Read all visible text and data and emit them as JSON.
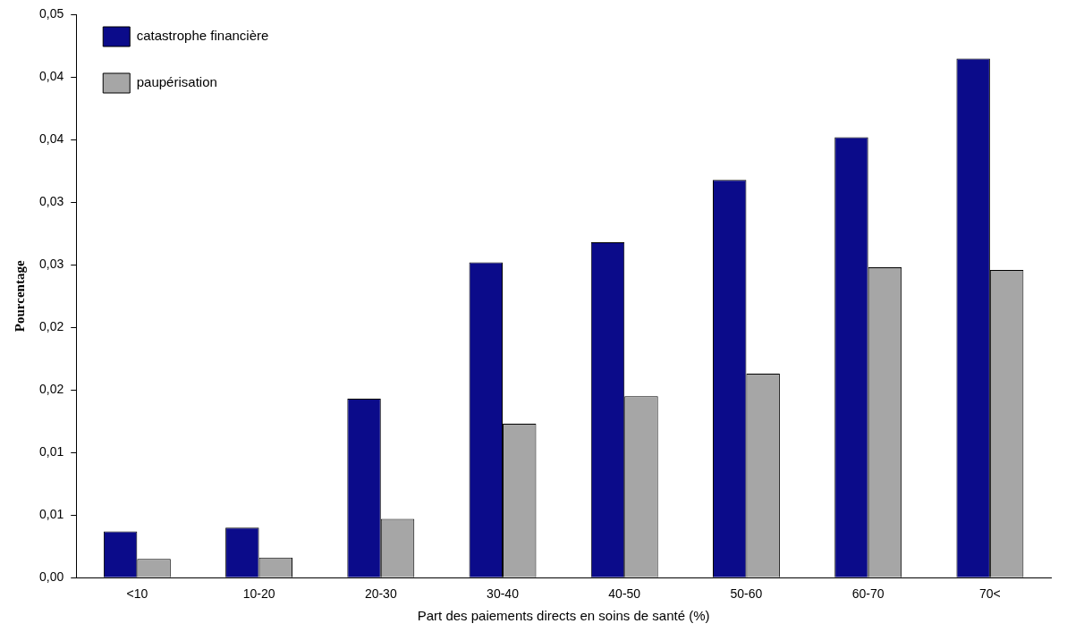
{
  "chart_data": {
    "type": "bar",
    "xlabel": "Part des paiements directs en soins de santé (%)",
    "ylabel": "Pourcentage",
    "categories": [
      "<10",
      "10-20",
      "20-30",
      "30-40",
      "40-50",
      "50-60",
      "60-70",
      "70<"
    ],
    "series": [
      {
        "name": "catastrophe financière",
        "color": "#0b0b8a",
        "values": [
          0.0037,
          0.004,
          0.0143,
          0.0252,
          0.0268,
          0.0318,
          0.0352,
          0.0415
        ]
      },
      {
        "name": "paupérisation",
        "color": "#a6a6a6",
        "values": [
          0.0015,
          0.0016,
          0.0047,
          0.0123,
          0.0145,
          0.0163,
          0.0248,
          0.0246
        ]
      }
    ],
    "ylim": [
      0,
      0.045
    ],
    "yticks": [
      {
        "value": 0,
        "label": "0,00"
      },
      {
        "value": 0.005,
        "label": "0,01"
      },
      {
        "value": 0.01,
        "label": "0,01"
      },
      {
        "value": 0.015,
        "label": "0,02"
      },
      {
        "value": 0.02,
        "label": "0,02"
      },
      {
        "value": 0.025,
        "label": "0,03"
      },
      {
        "value": 0.03,
        "label": "0,03"
      },
      {
        "value": 0.035,
        "label": "0,04"
      },
      {
        "value": 0.04,
        "label": "0,04"
      },
      {
        "value": 0.045,
        "label": "0,05"
      }
    ],
    "grid": false,
    "legend": "top left"
  }
}
